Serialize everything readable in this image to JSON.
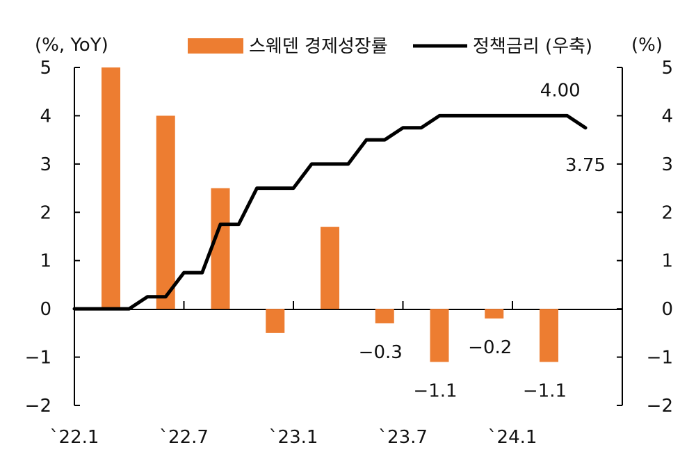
{
  "chart_data": {
    "type": "bar-line-combo",
    "left_axis": {
      "unit": "(%, YoY)",
      "ylim": [
        -2,
        5
      ],
      "ticks": [
        "5",
        "4",
        "3",
        "2",
        "1",
        "0",
        "-1",
        "-2"
      ]
    },
    "right_axis": {
      "unit": "(%)",
      "ylim": [
        -2,
        5
      ],
      "ticks": [
        "5",
        "4",
        "3",
        "2",
        "1",
        "0",
        "-1",
        "-2"
      ]
    },
    "x_ticks": [
      "`22.1",
      "`22.7",
      "`23.1",
      "`23.7",
      "`24.1"
    ],
    "legend": {
      "bar": "스웨덴 경제성장률",
      "line": "정책금리 (우축)"
    },
    "colors": {
      "bar": "#ED7D31",
      "line": "#000000",
      "axis": "#000000"
    },
    "bar_series": {
      "name": "스웨덴 경제성장률",
      "months": [
        2,
        5,
        8,
        11,
        14,
        17,
        20,
        23,
        26
      ],
      "values": [
        5.0,
        4.0,
        2.5,
        -0.5,
        1.7,
        -0.3,
        -1.1,
        -0.2,
        -1.1
      ]
    },
    "line_series": {
      "name": "정책금리 (우축)",
      "months": [
        0,
        1,
        2,
        3,
        4,
        5,
        6,
        7,
        8,
        9,
        10,
        11,
        12,
        13,
        14,
        15,
        16,
        17,
        18,
        19,
        20,
        21,
        22,
        23,
        24,
        25,
        26,
        27,
        28
      ],
      "values": [
        0,
        0,
        0,
        0,
        0.25,
        0.25,
        0.75,
        0.75,
        1.75,
        1.75,
        2.5,
        2.5,
        2.5,
        3.0,
        3.0,
        3.0,
        3.5,
        3.5,
        3.75,
        3.75,
        4.0,
        4.0,
        4.0,
        4.0,
        4.0,
        4.0,
        4.0,
        4.0,
        3.75
      ]
    },
    "annotations": [
      {
        "text": "4.00",
        "series": "line",
        "month": 27,
        "value": 4.0
      },
      {
        "text": "3.75",
        "series": "line",
        "month": 28,
        "value": 3.75
      },
      {
        "text": "-0.3",
        "series": "bar",
        "month": 17,
        "value": -0.3
      },
      {
        "text": "-1.1",
        "series": "bar",
        "month": 20,
        "value": -1.1
      },
      {
        "text": "-0.2",
        "series": "bar",
        "month": 23,
        "value": -0.2
      },
      {
        "text": "-1.1",
        "series": "bar",
        "month": 26,
        "value": -1.1
      }
    ]
  }
}
